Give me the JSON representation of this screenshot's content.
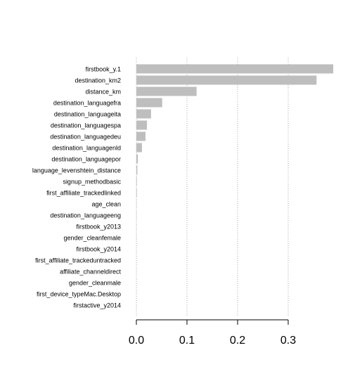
{
  "chart_data": {
    "type": "barh",
    "categories": [
      "firstbook_y.1",
      "destination_km2",
      "distance_km",
      "destination_languagefra",
      "destination_languageita",
      "destination_languagespa",
      "destination_languagedeu",
      "destination_languagenld",
      "destination_languagepor",
      "language_levenshtein_distance",
      "signup_methodbasic",
      "first_affiliate_trackedlinked",
      "age_clean",
      "destination_languageeng",
      "firstbook_y2013",
      "gender_cleanfemale",
      "firstbook_y2014",
      "first_affiliate_trackeduntracked",
      "affiliate_channeldirect",
      "gender_cleanmale",
      "first_device_typeMac.Desktop",
      "firstactive_y2014"
    ],
    "values": [
      0.389,
      0.356,
      0.119,
      0.051,
      0.029,
      0.021,
      0.018,
      0.011,
      0.003,
      0.002,
      0.001,
      0.001,
      0.0005,
      0.0005,
      0.0003,
      0.0003,
      0.0002,
      0.0002,
      0.0001,
      0.0001,
      0.0001,
      0.0001
    ],
    "color": "#bebebe",
    "xlim": [
      0,
      0.4
    ],
    "xticks": [
      {
        "value": 0,
        "label": "0.0"
      },
      0.1,
      0.2,
      0.3
    ],
    "grid": true
  }
}
